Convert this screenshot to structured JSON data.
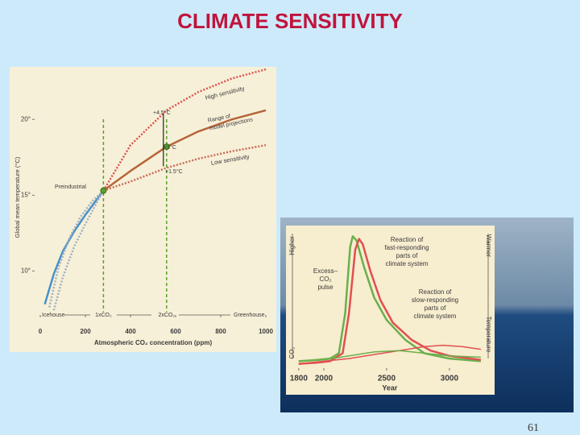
{
  "title": "CLIMATE SENSITIVITY",
  "page_number": "61",
  "chart_data": [
    {
      "type": "line",
      "xlabel": "Atmospheric CO₂ concentration (ppm)",
      "ylabel": "Global mean temperature (°C)",
      "xlim": [
        0,
        1000
      ],
      "ylim": [
        7.2,
        23.2
      ],
      "xticks": [
        0,
        200,
        400,
        600,
        800,
        1000
      ],
      "yticks": [
        {
          "value": 10,
          "label": "10°"
        },
        {
          "value": 15,
          "label": "15°"
        },
        {
          "value": 20,
          "label": "20°"
        }
      ],
      "series": [
        {
          "name": "High sensitivity",
          "color": "#d9534f",
          "style": "dotted",
          "x": [
            280,
            400,
            560,
            700,
            850,
            1000
          ],
          "values": [
            15.3,
            18.3,
            20.6,
            21.8,
            22.7,
            23.3
          ]
        },
        {
          "color": "#b5653a",
          "style": "solid",
          "x": [
            280,
            400,
            560,
            700,
            850,
            1000
          ],
          "values": [
            15.3,
            16.6,
            18.2,
            19.2,
            20.0,
            20.6
          ]
        },
        {
          "name": "Low sensitivity",
          "color": "#c86b57",
          "style": "dotted",
          "x": [
            280,
            400,
            560,
            700,
            850,
            1000
          ],
          "values": [
            15.3,
            15.9,
            16.8,
            17.4,
            17.9,
            18.3
          ]
        },
        {
          "color": "#4a90c8",
          "style": "solid",
          "x": [
            20,
            60,
            100,
            150,
            200,
            250,
            280
          ],
          "values": [
            7.8,
            9.8,
            11.3,
            12.6,
            13.7,
            14.7,
            15.3
          ]
        },
        {
          "color": "#9fb0c0",
          "style": "dotted",
          "x": [
            40,
            80,
            130,
            180,
            230,
            280
          ],
          "values": [
            7.6,
            10.2,
            12.2,
            13.6,
            14.6,
            15.3
          ]
        },
        {
          "color": "#9fb0c0",
          "style": "dotted",
          "x": [
            60,
            100,
            150,
            200,
            250,
            280
          ],
          "values": [
            7.4,
            9.6,
            11.6,
            13.1,
            14.5,
            15.3
          ]
        }
      ],
      "vlines": [
        {
          "x": 280,
          "label": "1xCO₂"
        },
        {
          "x": 560,
          "label": "2xCO₂"
        }
      ],
      "vline_color": "#5aa02c",
      "annotations": [
        [
          "+4.5°C"
        ],
        [
          "+3°C"
        ],
        [
          "+1.5°C"
        ],
        [
          "Preindustrial"
        ],
        [
          "Icehouse"
        ],
        [
          "Greenhouse"
        ],
        [
          "Range of",
          "model projections"
        ]
      ]
    },
    {
      "type": "line",
      "xlabel": "Year",
      "xlim": [
        1780,
        3270
      ],
      "ylim": [
        0,
        100
      ],
      "xticks": [
        1800,
        2000,
        2500,
        3000
      ],
      "series": [
        {
          "color": "#6ab04c",
          "style": "solid",
          "x": [
            1800,
            1950,
            2050,
            2120,
            2170,
            2210,
            2230,
            2260,
            2320,
            2400,
            2500,
            2650,
            2800,
            3000,
            3250
          ],
          "values": [
            4,
            5,
            6,
            10,
            40,
            90,
            98,
            95,
            75,
            52,
            35,
            20,
            10,
            6,
            4
          ]
        },
        {
          "color": "#e05050",
          "style": "solid",
          "x": [
            1800,
            1950,
            2050,
            2150,
            2200,
            2250,
            2280,
            2310,
            2370,
            2450,
            2550,
            2700,
            2850,
            3000,
            3250
          ],
          "values": [
            2,
            3,
            4,
            10,
            40,
            88,
            96,
            92,
            72,
            50,
            33,
            20,
            12,
            8,
            5
          ]
        },
        {
          "color": "#e05050",
          "style": "solid",
          "x": [
            1800,
            2000,
            2200,
            2400,
            2600,
            2800,
            2950,
            3100,
            3250
          ],
          "values": [
            2,
            4,
            6,
            9,
            12,
            15,
            16,
            15,
            13
          ]
        },
        {
          "color": "#6ab04c",
          "style": "solid",
          "x": [
            1800,
            2000,
            2200,
            2400,
            2600,
            2800,
            3000,
            3250
          ],
          "values": [
            4,
            5,
            8,
            11,
            12,
            10,
            8,
            7
          ]
        }
      ],
      "annotations": [
        [
          "Reaction of",
          "fast-responding",
          "parts of",
          "climate system"
        ],
        [
          "Excess–",
          "CO₂",
          "pulse"
        ],
        [
          "Reaction of",
          "slow-responding",
          "parts of",
          "climate system"
        ],
        [
          "Higher"
        ],
        [
          "CO₂"
        ],
        [
          "Warmer"
        ],
        [
          "Temperature"
        ]
      ]
    }
  ]
}
